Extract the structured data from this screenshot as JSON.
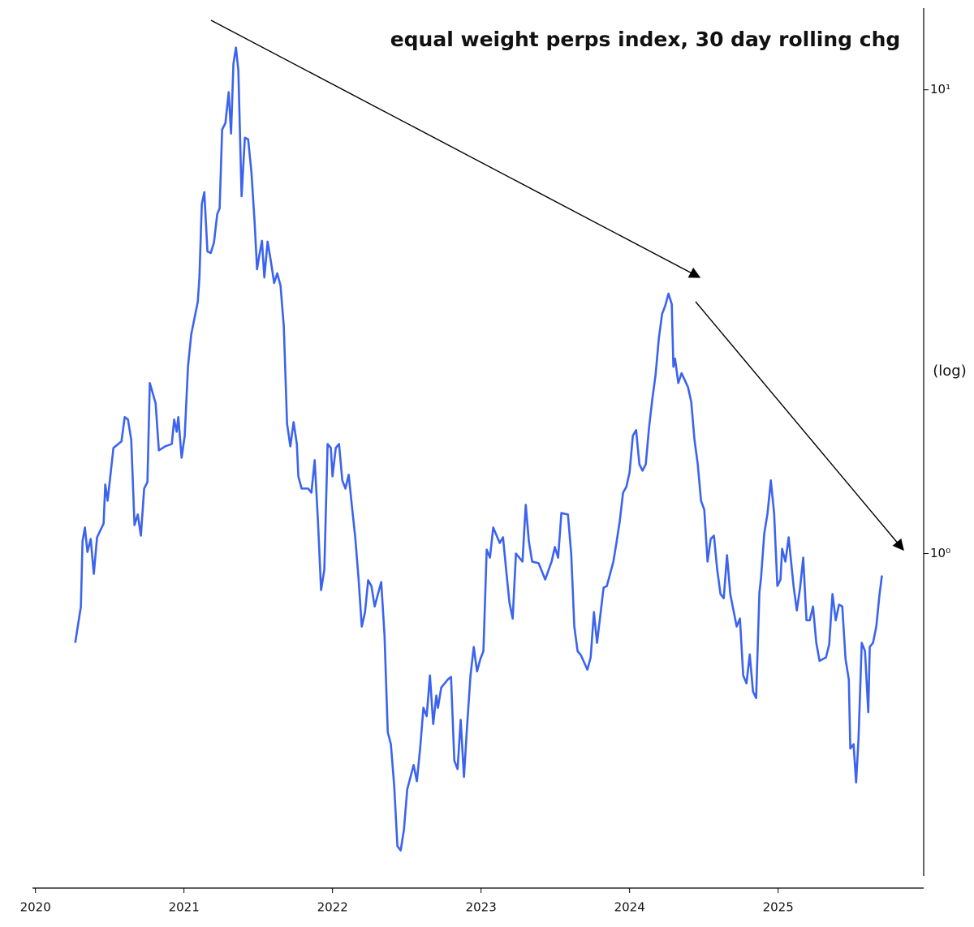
{
  "chart_data": {
    "type": "line",
    "title": "equal weight perps index, 30 day rolling chg",
    "y_scale_note": "(log)",
    "log_y": true,
    "grid": false,
    "xlim": [
      2019.98,
      2025.98
    ],
    "xticks": [
      2020,
      2021,
      2022,
      2023,
      2024,
      2025
    ],
    "ylim": [
      0.19,
      15
    ],
    "yticks": [
      {
        "value": 1,
        "label": "10⁰"
      },
      {
        "value": 10,
        "label": "10¹"
      }
    ],
    "series": [
      {
        "color": "#3b63f0",
        "x": [
          2020.268,
          2020.306,
          2020.317,
          2020.333,
          2020.35,
          2020.372,
          2020.393,
          2020.415,
          2020.459,
          2020.47,
          2020.486,
          2020.525,
          2020.579,
          2020.601,
          2020.623,
          2020.645,
          2020.667,
          2020.689,
          2020.71,
          2020.732,
          2020.754,
          2020.77,
          2020.809,
          2020.831,
          2020.874,
          2020.918,
          2020.934,
          2020.951,
          2020.962,
          2020.984,
          2021.005,
          2021.027,
          2021.049,
          2021.093,
          2021.104,
          2021.12,
          2021.137,
          2021.158,
          2021.18,
          2021.202,
          2021.224,
          2021.24,
          2021.257,
          2021.279,
          2021.301,
          2021.317,
          2021.333,
          2021.35,
          2021.366,
          2021.388,
          2021.41,
          2021.432,
          2021.454,
          2021.475,
          2021.492,
          2021.508,
          2021.525,
          2021.541,
          2021.563,
          2021.585,
          2021.607,
          2021.628,
          2021.65,
          2021.672,
          2021.694,
          2021.716,
          2021.738,
          2021.76,
          2021.77,
          2021.792,
          2021.836,
          2021.858,
          2021.88,
          2021.902,
          2021.923,
          2021.945,
          2021.967,
          2021.989,
          2022.0,
          2022.022,
          2022.044,
          2022.066,
          2022.087,
          2022.109,
          2022.131,
          2022.153,
          2022.175,
          2022.197,
          2022.219,
          2022.24,
          2022.262,
          2022.284,
          2022.306,
          2022.328,
          2022.35,
          2022.372,
          2022.393,
          2022.415,
          2022.437,
          2022.459,
          2022.481,
          2022.503,
          2022.546,
          2022.568,
          2022.59,
          2022.612,
          2022.634,
          2022.656,
          2022.678,
          2022.699,
          2022.71,
          2022.732,
          2022.776,
          2022.798,
          2022.82,
          2022.842,
          2022.863,
          2022.885,
          2022.907,
          2022.929,
          2022.951,
          2022.973,
          2022.995,
          2023.016,
          2023.038,
          2023.06,
          2023.082,
          2023.126,
          2023.148,
          2023.169,
          2023.191,
          2023.213,
          2023.235,
          2023.279,
          2023.301,
          2023.322,
          2023.344,
          2023.388,
          2023.432,
          2023.475,
          2023.497,
          2023.519,
          2023.541,
          2023.585,
          2023.607,
          2023.628,
          2023.65,
          2023.672,
          2023.716,
          2023.738,
          2023.76,
          2023.781,
          2023.825,
          2023.847,
          2023.891,
          2023.913,
          2023.934,
          2023.956,
          2023.978,
          2024.0,
          2024.022,
          2024.044,
          2024.066,
          2024.087,
          2024.109,
          2024.131,
          2024.153,
          2024.175,
          2024.197,
          2024.219,
          2024.24,
          2024.262,
          2024.284,
          2024.295,
          2024.306,
          2024.328,
          2024.35,
          2024.393,
          2024.415,
          2024.437,
          2024.459,
          2024.481,
          2024.503,
          2024.525,
          2024.546,
          2024.568,
          2024.59,
          2024.612,
          2024.634,
          2024.656,
          2024.678,
          2024.721,
          2024.743,
          2024.765,
          2024.787,
          2024.809,
          2024.831,
          2024.852,
          2024.874,
          2024.885,
          2024.907,
          2024.929,
          2024.951,
          2024.973,
          2024.995,
          2025.016,
          2025.027,
          2025.049,
          2025.071,
          2025.104,
          2025.126,
          2025.148,
          2025.169,
          2025.191,
          2025.213,
          2025.235,
          2025.257,
          2025.279,
          2025.322,
          2025.344,
          2025.366,
          2025.388,
          2025.41,
          2025.432,
          2025.454,
          2025.476,
          2025.486,
          2025.508,
          2025.525,
          2025.541,
          2025.563,
          2025.585,
          2025.607,
          2025.617,
          2025.639,
          2025.661,
          2025.683,
          2025.699
        ],
        "values": [
          0.642,
          0.769,
          1.062,
          1.138,
          1.008,
          1.075,
          0.904,
          1.084,
          1.161,
          1.409,
          1.3,
          1.689,
          1.745,
          1.969,
          1.945,
          1.759,
          1.152,
          1.214,
          1.093,
          1.381,
          1.426,
          2.332,
          2.109,
          1.669,
          1.703,
          1.723,
          1.945,
          1.831,
          1.969,
          1.609,
          1.794,
          2.528,
          2.971,
          3.491,
          3.939,
          5.664,
          6.016,
          4.482,
          4.446,
          4.686,
          5.395,
          5.55,
          8.208,
          8.477,
          9.879,
          8.044,
          11.38,
          12.33,
          11.02,
          5.896,
          7.883,
          7.819,
          6.655,
          5.224,
          4.102,
          4.411,
          4.724,
          3.939,
          4.705,
          4.271,
          3.831,
          4.02,
          3.784,
          3.093,
          1.906,
          1.703,
          1.921,
          1.723,
          1.467,
          1.381,
          1.381,
          1.353,
          1.59,
          1.175,
          0.834,
          0.923,
          1.723,
          1.689,
          1.467,
          1.689,
          1.723,
          1.438,
          1.381,
          1.479,
          1.263,
          1.084,
          0.886,
          0.696,
          0.748,
          0.876,
          0.851,
          0.769,
          0.818,
          0.868,
          0.668,
          0.412,
          0.388,
          0.317,
          0.234,
          0.229,
          0.254,
          0.31,
          0.35,
          0.323,
          0.38,
          0.465,
          0.446,
          0.546,
          0.429,
          0.494,
          0.465,
          0.514,
          0.535,
          0.542,
          0.358,
          0.343,
          0.438,
          0.33,
          0.429,
          0.546,
          0.629,
          0.557,
          0.592,
          0.616,
          1.02,
          0.98,
          1.138,
          1.054,
          1.084,
          0.923,
          0.785,
          0.724,
          1.0,
          0.961,
          1.274,
          1.062,
          0.961,
          0.953,
          0.879,
          0.961,
          1.033,
          0.98,
          1.223,
          1.214,
          1.0,
          0.696,
          0.616,
          0.604,
          0.562,
          0.597,
          0.748,
          0.642,
          0.844,
          0.851,
          0.961,
          1.062,
          1.175,
          1.353,
          1.392,
          1.496,
          1.794,
          1.846,
          1.558,
          1.509,
          1.558,
          1.868,
          2.151,
          2.428,
          2.911,
          3.286,
          3.421,
          3.634,
          3.449,
          2.528,
          2.632,
          2.332,
          2.448,
          2.286,
          2.126,
          1.759,
          1.558,
          1.3,
          1.243,
          0.961,
          1.075,
          1.093,
          0.923,
          0.818,
          0.801,
          0.992,
          0.818,
          0.696,
          0.724,
          0.546,
          0.525,
          0.606,
          0.504,
          0.488,
          0.824,
          0.886,
          1.106,
          1.223,
          1.438,
          1.223,
          0.851,
          0.879,
          1.024,
          0.961,
          1.084,
          0.851,
          0.754,
          0.844,
          0.98,
          0.718,
          0.718,
          0.769,
          0.642,
          0.587,
          0.597,
          0.637,
          0.818,
          0.718,
          0.776,
          0.769,
          0.592,
          0.535,
          0.38,
          0.388,
          0.321,
          0.396,
          0.642,
          0.616,
          0.455,
          0.629,
          0.642,
          0.696,
          0.818,
          0.897
        ]
      }
    ]
  }
}
